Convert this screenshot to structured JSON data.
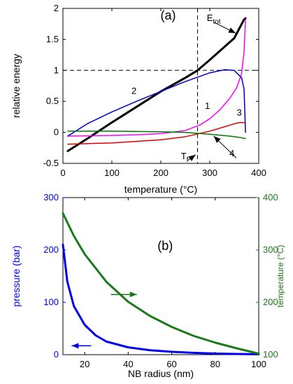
{
  "chart_data": [
    {
      "type": "line",
      "panel_label": "(a)",
      "xlabel": "temperature (°C)",
      "ylabel": "relative energy",
      "xlim": [
        0,
        400
      ],
      "ylim": [
        -0.5,
        2
      ],
      "x_ticks": [
        0,
        100,
        200,
        300,
        400
      ],
      "y_ticks": [
        -0.5,
        0,
        0.5,
        1,
        1.5,
        2
      ],
      "x_tick_labels": [
        "0",
        "100",
        "200",
        "300",
        "400"
      ],
      "y_tick_labels": [
        "-0.5",
        "0",
        "0.5",
        "1",
        "1.5",
        "2"
      ],
      "grid": false,
      "reference_lines": [
        {
          "orientation": "horizontal",
          "value": 1,
          "style": "dashed"
        },
        {
          "orientation": "vertical",
          "value": 275,
          "style": "dashed"
        }
      ],
      "series": [
        {
          "name": "E_tot",
          "color": "#000000",
          "width": 3,
          "points": [
            [
              10,
              -0.3
            ],
            [
              50,
              -0.1
            ],
            [
              100,
              0.16
            ],
            [
              150,
              0.41
            ],
            [
              200,
              0.66
            ],
            [
              250,
              0.88
            ],
            [
              275,
              1.0
            ],
            [
              300,
              1.17
            ],
            [
              350,
              1.52
            ],
            [
              370,
              1.82
            ],
            [
              373,
              1.84
            ]
          ]
        },
        {
          "name": "1",
          "color": "#ff00ff",
          "width": 1.5,
          "points": [
            [
              10,
              -0.06
            ],
            [
              100,
              -0.05
            ],
            [
              150,
              -0.04
            ],
            [
              200,
              -0.02
            ],
            [
              250,
              0.03
            ],
            [
              280,
              0.12
            ],
            [
              300,
              0.22
            ],
            [
              320,
              0.36
            ],
            [
              340,
              0.54
            ],
            [
              355,
              0.72
            ],
            [
              365,
              0.95
            ],
            [
              370,
              1.3
            ],
            [
              373,
              1.82
            ]
          ]
        },
        {
          "name": "2",
          "color": "#0000cd",
          "width": 1.5,
          "points": [
            [
              10,
              -0.06
            ],
            [
              50,
              0.14
            ],
            [
              100,
              0.33
            ],
            [
              150,
              0.5
            ],
            [
              200,
              0.66
            ],
            [
              250,
              0.82
            ],
            [
              300,
              0.96
            ],
            [
              330,
              1.01
            ],
            [
              350,
              1.0
            ],
            [
              365,
              0.88
            ],
            [
              370,
              0.7
            ],
            [
              373,
              0.0
            ]
          ]
        },
        {
          "name": "3",
          "color": "#dd0000",
          "width": 1.5,
          "points": [
            [
              10,
              -0.19
            ],
            [
              100,
              -0.17
            ],
            [
              200,
              -0.12
            ],
            [
              250,
              -0.07
            ],
            [
              300,
              0.02
            ],
            [
              330,
              0.09
            ],
            [
              355,
              0.15
            ],
            [
              365,
              0.16
            ],
            [
              373,
              0.15
            ]
          ]
        },
        {
          "name": "4",
          "color": "#007700",
          "width": 1.5,
          "points": [
            [
              10,
              0.02
            ],
            [
              100,
              0.02
            ],
            [
              200,
              0.01
            ],
            [
              250,
              0.0
            ],
            [
              300,
              -0.03
            ],
            [
              340,
              -0.06
            ],
            [
              360,
              -0.08
            ],
            [
              373,
              -0.1
            ]
          ]
        }
      ],
      "annotations": [
        {
          "text": "E",
          "subscript": "tot",
          "x": 294,
          "y": 1.8,
          "arrow_to": [
            353,
            1.6
          ]
        },
        {
          "text": "T",
          "subscript": "f",
          "x": 241,
          "y": -0.43,
          "arrow_to": [
            271,
            -0.36
          ]
        },
        {
          "text": "1",
          "x": 290,
          "y": 0.38
        },
        {
          "text": "2",
          "x": 140,
          "y": 0.62
        },
        {
          "text": "3",
          "x": 355,
          "y": 0.27
        },
        {
          "text": "4",
          "x": 340,
          "y": -0.39,
          "arrow_to": [
            308,
            -0.06
          ]
        }
      ]
    },
    {
      "type": "line",
      "panel_label": "(b)",
      "xlabel": "NB radius (nm)",
      "ylabel_left": "pressure (bar)",
      "ylabel_right": "temperature (°C)",
      "xlim": [
        10,
        100
      ],
      "ylim_left": [
        0,
        300
      ],
      "ylim_right": [
        100,
        400
      ],
      "x_ticks": [
        20,
        40,
        60,
        80,
        100
      ],
      "x_tick_labels": [
        "20",
        "40",
        "60",
        "80",
        "100"
      ],
      "y_ticks_left": [
        0,
        100,
        200,
        300
      ],
      "y_tick_labels_left": [
        "0",
        "100",
        "200",
        "300"
      ],
      "y_ticks_right": [
        100,
        200,
        300,
        400
      ],
      "y_tick_labels_right": [
        "100",
        "200",
        "300",
        "400"
      ],
      "grid": false,
      "series": [
        {
          "name": "pressure",
          "axis": "left",
          "color": "#0000ee",
          "width": 3,
          "points": [
            [
              10,
              210
            ],
            [
              12,
              140
            ],
            [
              15,
              93
            ],
            [
              20,
              57
            ],
            [
              25,
              37
            ],
            [
              30,
              25
            ],
            [
              40,
              14
            ],
            [
              50,
              8.5
            ],
            [
              60,
              5.5
            ],
            [
              70,
              3.5
            ],
            [
              80,
              2.2
            ],
            [
              90,
              1.3
            ],
            [
              100,
              0.8
            ]
          ]
        },
        {
          "name": "temperature",
          "axis": "right",
          "color": "#1a7a1a",
          "width": 3,
          "points": [
            [
              10,
              370
            ],
            [
              15,
              327
            ],
            [
              20,
              292
            ],
            [
              30,
              239
            ],
            [
              40,
              201
            ],
            [
              50,
              174
            ],
            [
              60,
              153
            ],
            [
              70,
              136
            ],
            [
              80,
              123
            ],
            [
              90,
              112
            ],
            [
              100,
              102
            ]
          ]
        }
      ],
      "annotations": [
        {
          "direction": "left",
          "color": "#0000ee",
          "x_from": 23,
          "x_to": 14,
          "y": 17,
          "axis": "left"
        },
        {
          "direction": "right",
          "color": "#1a7a1a",
          "x_from": 32,
          "x_to": 44,
          "y": 215,
          "axis": "right"
        }
      ]
    }
  ]
}
